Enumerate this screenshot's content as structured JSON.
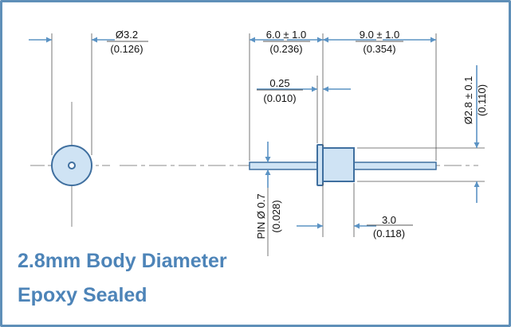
{
  "drawing": {
    "end_view": {
      "diameter_mm": "Ø3.2",
      "diameter_in": "(0.126)"
    },
    "lead_left": {
      "length_mm": "6.0 ± 1.0",
      "length_in": "(0.236)"
    },
    "lead_right": {
      "length_mm": "9.0 ± 1.0",
      "length_in": "(0.354)"
    },
    "flange": {
      "thickness_mm": "0.25",
      "thickness_in": "(0.010)"
    },
    "body_diameter": {
      "value_mm": "Ø2.8 ± 0.1",
      "value_in": "(0.110)"
    },
    "pin": {
      "diameter_mm": "PIN Ø 0.7",
      "diameter_in": "(0.028)"
    },
    "body_length": {
      "length_mm": "3.0",
      "length_in": "(0.118)"
    }
  },
  "captions": {
    "line1": "2.8mm Body Diameter",
    "line2": "Epoxy Sealed"
  },
  "colors": {
    "border": "#5f8fb8",
    "part_fill": "#cfe3f4",
    "part_stroke": "#3f6f9f",
    "arrow": "#5b93c4",
    "caption": "#4d84b8"
  }
}
